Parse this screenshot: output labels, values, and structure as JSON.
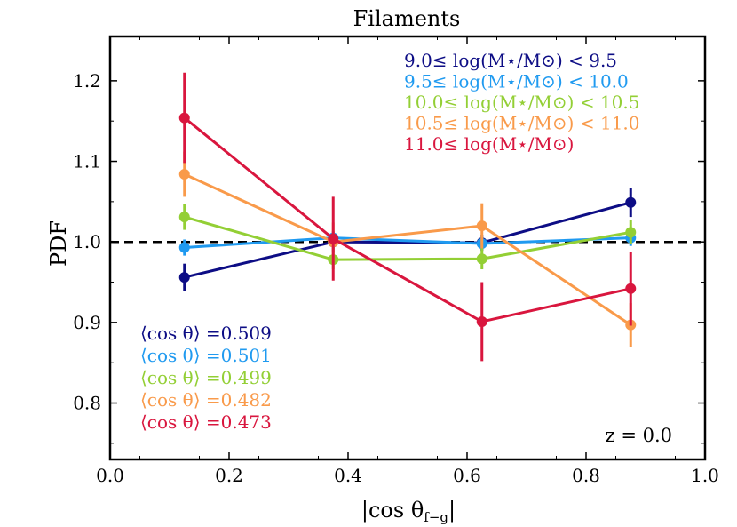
{
  "chart_data": {
    "type": "line",
    "title": "Filaments",
    "xlabel": "|cos θf−g|",
    "xlabel_parts": {
      "main": "|cos θ",
      "sub": "f−g",
      "end": "|"
    },
    "ylabel": "PDF",
    "xlim": [
      0.0,
      1.0
    ],
    "ylim": [
      0.73,
      1.255
    ],
    "x_ticks": [
      0.0,
      0.2,
      0.4,
      0.6,
      0.8,
      1.0
    ],
    "x_tick_labels": [
      "0.0",
      "0.2",
      "0.4",
      "0.6",
      "0.8",
      "1.0"
    ],
    "y_ticks": [
      0.8,
      0.9,
      1.0,
      1.1,
      1.2
    ],
    "y_tick_labels": [
      "0.8",
      "0.9",
      "1.0",
      "1.1",
      "1.2"
    ],
    "reference_line": {
      "y": 1.0,
      "style": "dashed",
      "color": "#000000"
    },
    "x": [
      0.125,
      0.375,
      0.625,
      0.875
    ],
    "series": [
      {
        "name": "9.0≤ log(M⋆/M⊙) < 9.5",
        "color": "#0d0d85",
        "values": [
          0.956,
          1.0,
          0.999,
          1.049
        ],
        "errors": [
          0.017,
          0.013,
          0.01,
          0.018
        ],
        "mean_cos": "⟨cos θ⟩ =0.509"
      },
      {
        "name": "9.5≤ log(M⋆/M⊙) < 10.0",
        "color": "#1f9af0",
        "values": [
          0.993,
          1.005,
          0.998,
          1.005
        ],
        "errors": [
          0.01,
          0.008,
          0.008,
          0.01
        ],
        "mean_cos": "⟨cos θ⟩ =0.501"
      },
      {
        "name": "10.0≤ log(M⋆/M⊙) < 10.5",
        "color": "#93cf35",
        "values": [
          1.031,
          0.978,
          0.979,
          1.012
        ],
        "errors": [
          0.016,
          0.012,
          0.013,
          0.015
        ],
        "mean_cos": "⟨cos θ⟩ =0.499"
      },
      {
        "name": "10.5≤ log(M⋆/M⊙) < 11.0",
        "color": "#f99a4a",
        "values": [
          1.084,
          1.0,
          1.02,
          0.897
        ],
        "errors": [
          0.028,
          0.024,
          0.028,
          0.027
        ],
        "mean_cos": "⟨cos θ⟩ =0.482"
      },
      {
        "name": "11.0≤ log(M⋆/M⊙)",
        "color": "#d9163e",
        "values": [
          1.154,
          1.004,
          0.901,
          0.942
        ],
        "errors": [
          0.056,
          0.052,
          0.049,
          0.046
        ],
        "mean_cos": "⟨cos θ⟩ =0.473"
      }
    ],
    "legend_placement": "top-right",
    "annotations": {
      "mean_cos_placement": "bottom-left",
      "redshift": "z = 0.0",
      "redshift_placement": "bottom-right"
    }
  }
}
